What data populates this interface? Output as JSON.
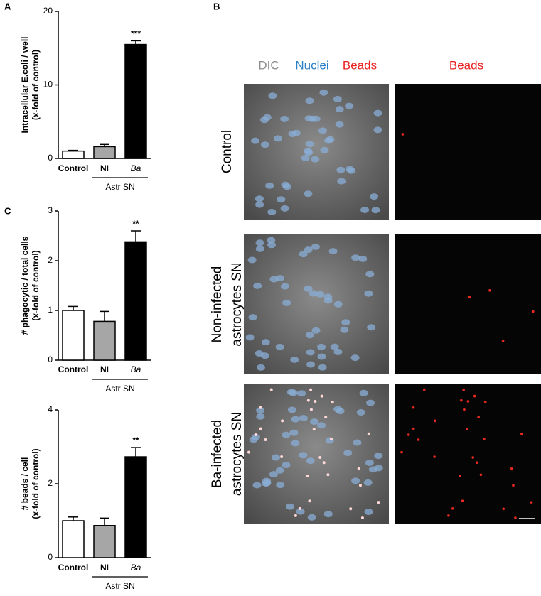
{
  "panel_labels": [
    "A",
    "B",
    "C"
  ],
  "chart_data": [
    {
      "type": "bar",
      "ylabel": [
        "Intracellular E.coli / well",
        "(x-fold of control)"
      ],
      "categories": [
        "Control",
        "NI",
        "Ba"
      ],
      "values": [
        1.0,
        1.6,
        15.5
      ],
      "errors": [
        0.1,
        0.3,
        0.5
      ],
      "significance": [
        null,
        null,
        "***"
      ],
      "colors": [
        "#ffffff",
        "#a6a6a6",
        "#000000"
      ],
      "group_label": "Astr SN",
      "ylim": [
        0,
        20
      ],
      "yticks": [
        0,
        10,
        20
      ]
    },
    {
      "type": "bar",
      "ylabel": [
        "# phagocytic / total cells",
        "(x-fold of control)"
      ],
      "categories": [
        "Control",
        "NI",
        "Ba"
      ],
      "values": [
        1.0,
        0.78,
        2.38
      ],
      "errors": [
        0.08,
        0.2,
        0.22
      ],
      "significance": [
        null,
        null,
        "**"
      ],
      "colors": [
        "#ffffff",
        "#a6a6a6",
        "#000000"
      ],
      "group_label": "Astr SN",
      "ylim": [
        0,
        3
      ],
      "yticks": [
        0,
        1,
        2,
        3
      ]
    },
    {
      "type": "bar",
      "ylabel": [
        "# beads / cell",
        "(x-fold of control)"
      ],
      "categories": [
        "Control",
        "NI",
        "Ba"
      ],
      "values": [
        1.0,
        0.87,
        2.73
      ],
      "errors": [
        0.1,
        0.2,
        0.25
      ],
      "significance": [
        null,
        null,
        "**"
      ],
      "colors": [
        "#ffffff",
        "#a6a6a6",
        "#000000"
      ],
      "group_label": "Astr SN",
      "ylim": [
        0,
        4
      ],
      "yticks": [
        0,
        2,
        4
      ]
    }
  ],
  "panel_b": {
    "headers": [
      {
        "text": "DIC",
        "color": "#8c8c8c"
      },
      {
        "text": "Nuclei",
        "color": "#2a7fc9"
      },
      {
        "text": "Beads",
        "color": "#e8201e"
      },
      {
        "text": "Beads",
        "color": "#e8201e"
      }
    ],
    "rows": [
      [
        "Control"
      ],
      [
        "Non-infected",
        "astrocytes SN"
      ],
      [
        "Ba-infected",
        "astrocytes SN"
      ]
    ]
  }
}
